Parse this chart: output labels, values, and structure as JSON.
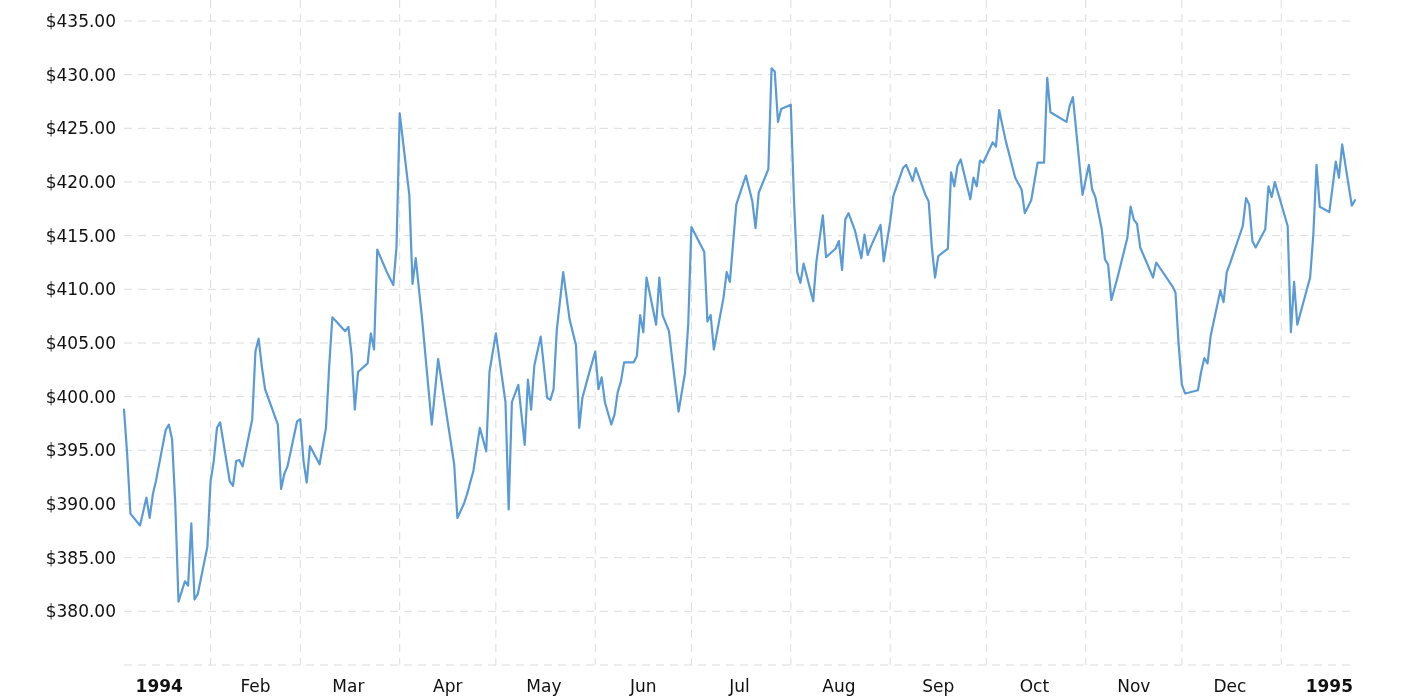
{
  "chart_data": {
    "type": "line",
    "color": "#5b9bd5",
    "grid": true,
    "line_style": "solid",
    "xlim": [
      "1994-01-05",
      "1995-01-24"
    ],
    "xticks": [
      {
        "value": "1994-01-16",
        "label": "1994"
      },
      {
        "value": "1994-02-01",
        "label": null
      },
      {
        "value": "1994-02-15",
        "label": "Feb"
      },
      {
        "value": "1994-03-01",
        "label": null
      },
      {
        "value": "1994-03-16",
        "label": "Mar"
      },
      {
        "value": "1994-04-01",
        "label": null
      },
      {
        "value": "1994-04-16",
        "label": "Apr"
      },
      {
        "value": "1994-05-01",
        "label": null
      },
      {
        "value": "1994-05-16",
        "label": "May"
      },
      {
        "value": "1994-06-01",
        "label": null
      },
      {
        "value": "1994-06-16",
        "label": "Jun"
      },
      {
        "value": "1994-07-01",
        "label": null
      },
      {
        "value": "1994-07-16",
        "label": "Jul"
      },
      {
        "value": "1994-08-01",
        "label": null
      },
      {
        "value": "1994-08-16",
        "label": "Aug"
      },
      {
        "value": "1994-09-01",
        "label": null
      },
      {
        "value": "1994-09-16",
        "label": "Sep"
      },
      {
        "value": "1994-10-01",
        "label": null
      },
      {
        "value": "1994-10-16",
        "label": "Oct"
      },
      {
        "value": "1994-11-01",
        "label": null
      },
      {
        "value": "1994-11-16",
        "label": "Nov"
      },
      {
        "value": "1994-12-01",
        "label": null
      },
      {
        "value": "1994-12-16",
        "label": "Dec"
      },
      {
        "value": "1995-01-01",
        "label": null
      },
      {
        "value": "1995-01-16",
        "label": "1995"
      }
    ],
    "ylim": [
      375,
      435
    ],
    "yticks": [
      {
        "value": 375,
        "label": null
      },
      {
        "value": 380,
        "label": "$380.00"
      },
      {
        "value": 385,
        "label": "$385.00"
      },
      {
        "value": 390,
        "label": "$390.00"
      },
      {
        "value": 395,
        "label": "$395.00"
      },
      {
        "value": 400,
        "label": "$400.00"
      },
      {
        "value": 405,
        "label": "$405.00"
      },
      {
        "value": 410,
        "label": "$410.00"
      },
      {
        "value": 415,
        "label": "$415.00"
      },
      {
        "value": 420,
        "label": "$420.00"
      },
      {
        "value": 425,
        "label": "$425.00"
      },
      {
        "value": 430,
        "label": "$430.00"
      },
      {
        "value": 435,
        "label": "$435.00"
      }
    ],
    "x": [
      "1994-01-05",
      "1994-01-06",
      "1994-01-07",
      "1994-01-10",
      "1994-01-12",
      "1994-01-13",
      "1994-01-14",
      "1994-01-15",
      "1994-01-18",
      "1994-01-19",
      "1994-01-20",
      "1994-01-21",
      "1994-01-22",
      "1994-01-24",
      "1994-01-25",
      "1994-01-26",
      "1994-01-27",
      "1994-01-28",
      "1994-01-31",
      "1994-02-01",
      "1994-02-02",
      "1994-02-03",
      "1994-02-04",
      "1994-02-07",
      "1994-02-08",
      "1994-02-09",
      "1994-02-10",
      "1994-02-11",
      "1994-02-14",
      "1994-02-15",
      "1994-02-16",
      "1994-02-17",
      "1994-02-18",
      "1994-02-22",
      "1994-02-23",
      "1994-02-24",
      "1994-02-25",
      "1994-02-28",
      "1994-03-01",
      "1994-03-02",
      "1994-03-03",
      "1994-03-04",
      "1994-03-07",
      "1994-03-09",
      "1994-03-10",
      "1994-03-11",
      "1994-03-15",
      "1994-03-16",
      "1994-03-17",
      "1994-03-18",
      "1994-03-19",
      "1994-03-22",
      "1994-03-23",
      "1994-03-24",
      "1994-03-25",
      "1994-03-28",
      "1994-03-30",
      "1994-03-31",
      "1994-04-01",
      "1994-04-04",
      "1994-04-05",
      "1994-04-06",
      "1994-04-08",
      "1994-04-11",
      "1994-04-13",
      "1994-04-16",
      "1994-04-18",
      "1994-04-19",
      "1994-04-21",
      "1994-04-22",
      "1994-04-24",
      "1994-04-26",
      "1994-04-28",
      "1994-04-29",
      "1994-05-01",
      "1994-05-04",
      "1994-05-05",
      "1994-05-06",
      "1994-05-08",
      "1994-05-10",
      "1994-05-11",
      "1994-05-12",
      "1994-05-13",
      "1994-05-15",
      "1994-05-17",
      "1994-05-18",
      "1994-05-19",
      "1994-05-20",
      "1994-05-22",
      "1994-05-24",
      "1994-05-26",
      "1994-05-27",
      "1994-05-28",
      "1994-05-30",
      "1994-06-01",
      "1994-06-02",
      "1994-06-03",
      "1994-06-04",
      "1994-06-06",
      "1994-06-07",
      "1994-06-08",
      "1994-06-09",
      "1994-06-10",
      "1994-06-13",
      "1994-06-14",
      "1994-06-15",
      "1994-06-16",
      "1994-06-17",
      "1994-06-20",
      "1994-06-21",
      "1994-06-22",
      "1994-06-24",
      "1994-06-25",
      "1994-06-27",
      "1994-06-29",
      "1994-06-30",
      "1994-07-01",
      "1994-07-05",
      "1994-07-06",
      "1994-07-07",
      "1994-07-08",
      "1994-07-11",
      "1994-07-12",
      "1994-07-13",
      "1994-07-15",
      "1994-07-18",
      "1994-07-20",
      "1994-07-21",
      "1994-07-22",
      "1994-07-25",
      "1994-07-26",
      "1994-07-27",
      "1994-07-28",
      "1994-07-29",
      "1994-08-01",
      "1994-08-02",
      "1994-08-03",
      "1994-08-04",
      "1994-08-05",
      "1994-08-08",
      "1994-08-09",
      "1994-08-11",
      "1994-08-12",
      "1994-08-15",
      "1994-08-16",
      "1994-08-17",
      "1994-08-18",
      "1994-08-19",
      "1994-08-21",
      "1994-08-22",
      "1994-08-23",
      "1994-08-24",
      "1994-08-25",
      "1994-08-26",
      "1994-08-29",
      "1994-08-30",
      "1994-09-01",
      "1994-09-02",
      "1994-09-05",
      "1994-09-06",
      "1994-09-08",
      "1994-09-09",
      "1994-09-12",
      "1994-09-13",
      "1994-09-14",
      "1994-09-15",
      "1994-09-16",
      "1994-09-19",
      "1994-09-20",
      "1994-09-21",
      "1994-09-22",
      "1994-09-23",
      "1994-09-26",
      "1994-09-27",
      "1994-09-28",
      "1994-09-29",
      "1994-09-30",
      "1994-10-03",
      "1994-10-04",
      "1994-10-05",
      "1994-10-07",
      "1994-10-10",
      "1994-10-12",
      "1994-10-13",
      "1994-10-15",
      "1994-10-17",
      "1994-10-19",
      "1994-10-20",
      "1994-10-21",
      "1994-10-26",
      "1994-10-27",
      "1994-10-28",
      "1994-10-31",
      "1994-11-02",
      "1994-11-03",
      "1994-11-04",
      "1994-11-06",
      "1994-11-07",
      "1994-11-08",
      "1994-11-09",
      "1994-11-11",
      "1994-11-14",
      "1994-11-15",
      "1994-11-16",
      "1994-11-17",
      "1994-11-18",
      "1994-11-22",
      "1994-11-23",
      "1994-11-28",
      "1994-11-29",
      "1994-11-30",
      "1994-12-01",
      "1994-12-02",
      "1994-12-06",
      "1994-12-07",
      "1994-12-08",
      "1994-12-09",
      "1994-12-10",
      "1994-12-13",
      "1994-12-14",
      "1994-12-15",
      "1994-12-16",
      "1994-12-20",
      "1994-12-21",
      "1994-12-22",
      "1994-12-23",
      "1994-12-24",
      "1994-12-27",
      "1994-12-28",
      "1994-12-29",
      "1994-12-30",
      "1995-01-03",
      "1995-01-04",
      "1995-01-05",
      "1995-01-06",
      "1995-01-09",
      "1995-01-10",
      "1995-01-11",
      "1995-01-12",
      "1995-01-13",
      "1995-01-16",
      "1995-01-18",
      "1995-01-19",
      "1995-01-20",
      "1995-01-23",
      "1995-01-24"
    ],
    "values": [
      398.8,
      394.6,
      389.1,
      388.0,
      390.6,
      388.7,
      390.9,
      392.2,
      396.9,
      397.4,
      396.0,
      390.0,
      380.9,
      382.8,
      382.4,
      388.2,
      381.1,
      381.6,
      386.0,
      392.1,
      394.0,
      397.1,
      397.6,
      392.1,
      391.7,
      394.0,
      394.1,
      393.5,
      397.9,
      404.2,
      405.4,
      402.8,
      400.7,
      397.4,
      391.4,
      392.8,
      393.5,
      397.7,
      397.9,
      394.0,
      392.0,
      395.4,
      393.7,
      397.1,
      402.8,
      407.4,
      406.1,
      406.5,
      403.9,
      398.8,
      402.3,
      403.1,
      405.9,
      404.4,
      413.7,
      411.6,
      410.4,
      413.9,
      426.4,
      418.8,
      410.5,
      412.9,
      407.2,
      397.4,
      403.5,
      397.6,
      393.7,
      388.7,
      390.0,
      390.9,
      393.1,
      397.1,
      394.9,
      402.3,
      405.9,
      399.5,
      389.5,
      399.5,
      401.1,
      395.5,
      401.6,
      398.8,
      402.9,
      405.6,
      399.9,
      399.7,
      400.7,
      406.2,
      411.6,
      407.2,
      404.8,
      397.1,
      399.9,
      402.1,
      404.2,
      400.7,
      401.8,
      399.5,
      397.4,
      398.3,
      400.4,
      401.4,
      403.2,
      403.2,
      403.8,
      407.6,
      406.0,
      411.1,
      406.7,
      411.1,
      407.6,
      406.1,
      403.5,
      398.6,
      402.2,
      406.7,
      415.8,
      413.5,
      407.0,
      407.6,
      404.4,
      409.2,
      411.6,
      410.7,
      417.9,
      420.6,
      418.2,
      415.7,
      419.0,
      421.2,
      430.6,
      430.3,
      425.6,
      426.8,
      427.2,
      418.3,
      411.6,
      410.6,
      412.4,
      408.9,
      412.6,
      416.9,
      413.0,
      413.8,
      414.5,
      411.8,
      416.5,
      417.1,
      415.5,
      414.2,
      412.9,
      415.1,
      413.2,
      414.0,
      416.0,
      412.6,
      416.3,
      418.7,
      421.3,
      421.6,
      420.1,
      421.3,
      418.8,
      418.2,
      413.9,
      411.1,
      413.1,
      413.8,
      420.9,
      419.6,
      421.5,
      422.1,
      418.4,
      420.4,
      419.6,
      422.0,
      421.8,
      423.7,
      423.3,
      426.7,
      423.9,
      420.4,
      419.3,
      417.1,
      418.3,
      421.8,
      421.8,
      429.7,
      426.5,
      425.6,
      427.1,
      427.9,
      418.8,
      421.6,
      419.3,
      418.6,
      415.6,
      412.8,
      412.3,
      409.0,
      411.2,
      414.8,
      417.7,
      416.5,
      416.1,
      413.9,
      411.1,
      412.5,
      410.3,
      409.7,
      404.8,
      401.1,
      400.3,
      400.6,
      402.3,
      403.6,
      403.1,
      405.7,
      409.9,
      408.8,
      411.6,
      412.4,
      415.9,
      418.5,
      417.9,
      414.5,
      413.9,
      415.6,
      419.6,
      418.6,
      420.0,
      415.9,
      406.0,
      410.7,
      406.7,
      410.0,
      411.1,
      415.1,
      421.6,
      417.7,
      417.2,
      421.9,
      420.4,
      423.5,
      417.8,
      418.3
    ]
  }
}
